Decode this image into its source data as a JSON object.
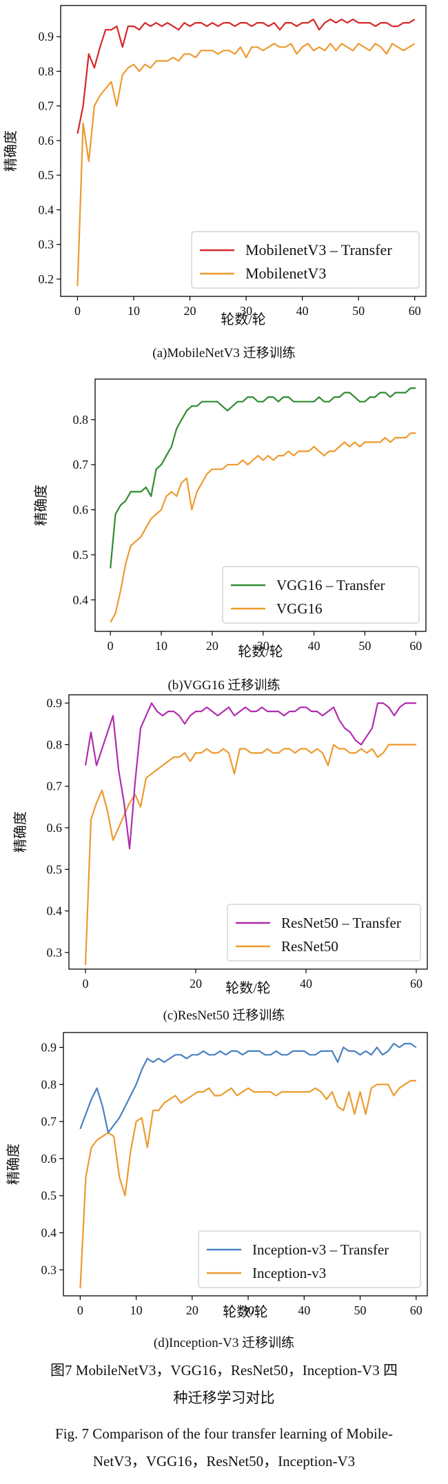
{
  "chart_data": [
    {
      "type": "line",
      "caption": "(a)MobileNetV3 迁移训练",
      "xlabel": "轮数/轮",
      "ylabel": "精确度",
      "xlim": [
        -3,
        62
      ],
      "ylim": [
        0.15,
        0.99
      ],
      "xticks": [
        0,
        10,
        20,
        30,
        40,
        50,
        60
      ],
      "xtick_labels": [
        "0",
        "10",
        "20",
        "30",
        "40",
        "50",
        "60"
      ],
      "yticks": [
        0.2,
        0.3,
        0.4,
        0.5,
        0.6,
        0.7,
        0.8,
        0.9
      ],
      "ytick_labels": [
        "0.2",
        "0.3",
        "0.4",
        "0.5",
        "0.6",
        "0.7",
        "0.8",
        "0.9"
      ],
      "legend_position": "lower-right",
      "grid": false,
      "x": [
        0,
        1,
        2,
        3,
        4,
        5,
        6,
        7,
        8,
        9,
        10,
        11,
        12,
        13,
        14,
        15,
        16,
        17,
        18,
        19,
        20,
        21,
        22,
        23,
        24,
        25,
        26,
        27,
        28,
        29,
        30,
        31,
        32,
        33,
        34,
        35,
        36,
        37,
        38,
        39,
        40,
        41,
        42,
        43,
        44,
        45,
        46,
        47,
        48,
        49,
        50,
        51,
        52,
        53,
        54,
        55,
        56,
        57,
        58,
        59,
        60
      ],
      "series": [
        {
          "name": "MobilenetV3 – Transfer",
          "color": "#d62728",
          "values": [
            0.62,
            0.7,
            0.85,
            0.81,
            0.87,
            0.92,
            0.92,
            0.93,
            0.87,
            0.93,
            0.93,
            0.92,
            0.94,
            0.93,
            0.94,
            0.93,
            0.94,
            0.93,
            0.92,
            0.94,
            0.93,
            0.94,
            0.94,
            0.93,
            0.94,
            0.93,
            0.94,
            0.94,
            0.93,
            0.94,
            0.94,
            0.93,
            0.94,
            0.94,
            0.93,
            0.94,
            0.92,
            0.94,
            0.94,
            0.93,
            0.94,
            0.94,
            0.95,
            0.92,
            0.94,
            0.95,
            0.94,
            0.95,
            0.94,
            0.95,
            0.94,
            0.94,
            0.94,
            0.93,
            0.94,
            0.94,
            0.93,
            0.93,
            0.94,
            0.94,
            0.95
          ]
        },
        {
          "name": "MobilenetV3",
          "color": "#ed9a2f",
          "values": [
            0.18,
            0.65,
            0.54,
            0.7,
            0.73,
            0.75,
            0.77,
            0.7,
            0.79,
            0.81,
            0.82,
            0.8,
            0.82,
            0.81,
            0.83,
            0.83,
            0.83,
            0.84,
            0.83,
            0.85,
            0.85,
            0.84,
            0.86,
            0.86,
            0.86,
            0.85,
            0.86,
            0.86,
            0.85,
            0.87,
            0.84,
            0.87,
            0.87,
            0.86,
            0.87,
            0.88,
            0.87,
            0.87,
            0.88,
            0.85,
            0.87,
            0.88,
            0.86,
            0.87,
            0.86,
            0.88,
            0.86,
            0.88,
            0.87,
            0.86,
            0.88,
            0.87,
            0.86,
            0.88,
            0.87,
            0.85,
            0.88,
            0.87,
            0.86,
            0.87,
            0.88
          ]
        }
      ]
    },
    {
      "type": "line",
      "caption": "(b)VGG16 迁移训练",
      "xlabel": "轮数/轮",
      "ylabel": "精确度",
      "xlim": [
        -3,
        62
      ],
      "ylim": [
        0.33,
        0.89
      ],
      "xticks": [
        0,
        10,
        20,
        30,
        40,
        50,
        60
      ],
      "xtick_labels": [
        "0",
        "10",
        "20",
        "30",
        "40",
        "50",
        "60"
      ],
      "yticks": [
        0.4,
        0.5,
        0.6,
        0.7,
        0.8
      ],
      "ytick_labels": [
        "0.4",
        "0.5",
        "0.6",
        "0.7",
        "0.8"
      ],
      "legend_position": "lower-right",
      "grid": false,
      "x": [
        0,
        1,
        2,
        3,
        4,
        5,
        6,
        7,
        8,
        9,
        10,
        11,
        12,
        13,
        14,
        15,
        16,
        17,
        18,
        19,
        20,
        21,
        22,
        23,
        24,
        25,
        26,
        27,
        28,
        29,
        30,
        31,
        32,
        33,
        34,
        35,
        36,
        37,
        38,
        39,
        40,
        41,
        42,
        43,
        44,
        45,
        46,
        47,
        48,
        49,
        50,
        51,
        52,
        53,
        54,
        55,
        56,
        57,
        58,
        59,
        60
      ],
      "series": [
        {
          "name": "VGG16 – Transfer",
          "color": "#2e8b2e",
          "values": [
            0.47,
            0.59,
            0.61,
            0.62,
            0.64,
            0.64,
            0.64,
            0.65,
            0.63,
            0.69,
            0.7,
            0.72,
            0.74,
            0.78,
            0.8,
            0.82,
            0.83,
            0.83,
            0.84,
            0.84,
            0.84,
            0.84,
            0.83,
            0.82,
            0.83,
            0.84,
            0.84,
            0.85,
            0.85,
            0.84,
            0.84,
            0.85,
            0.85,
            0.84,
            0.85,
            0.85,
            0.84,
            0.84,
            0.84,
            0.84,
            0.84,
            0.85,
            0.84,
            0.84,
            0.85,
            0.85,
            0.86,
            0.86,
            0.85,
            0.84,
            0.84,
            0.85,
            0.85,
            0.86,
            0.86,
            0.85,
            0.86,
            0.86,
            0.86,
            0.87,
            0.87
          ]
        },
        {
          "name": "VGG16",
          "color": "#ed9a2f",
          "values": [
            0.35,
            0.37,
            0.42,
            0.48,
            0.52,
            0.53,
            0.54,
            0.56,
            0.58,
            0.59,
            0.6,
            0.63,
            0.64,
            0.63,
            0.66,
            0.67,
            0.6,
            0.64,
            0.66,
            0.68,
            0.69,
            0.69,
            0.69,
            0.7,
            0.7,
            0.7,
            0.71,
            0.7,
            0.71,
            0.72,
            0.71,
            0.72,
            0.71,
            0.72,
            0.72,
            0.73,
            0.72,
            0.73,
            0.73,
            0.73,
            0.74,
            0.73,
            0.72,
            0.73,
            0.73,
            0.74,
            0.75,
            0.74,
            0.75,
            0.74,
            0.75,
            0.75,
            0.75,
            0.75,
            0.76,
            0.75,
            0.76,
            0.76,
            0.76,
            0.77,
            0.77
          ]
        }
      ]
    },
    {
      "type": "line",
      "caption": "(c)ResNet50 迁移训练",
      "xlabel": "轮数/轮",
      "ylabel": "精确度",
      "xlim": [
        -3,
        62
      ],
      "ylim": [
        0.26,
        0.92
      ],
      "xticks": [
        0,
        20,
        40,
        60
      ],
      "xtick_labels": [
        "0",
        "20",
        "40",
        "60"
      ],
      "yticks": [
        0.3,
        0.4,
        0.5,
        0.6,
        0.7,
        0.8,
        0.9
      ],
      "ytick_labels": [
        "0.3",
        "0.4",
        "0.5",
        "0.6",
        "0.7",
        "0.8",
        "0.9"
      ],
      "legend_position": "lower-right",
      "grid": false,
      "x": [
        0,
        1,
        2,
        3,
        4,
        5,
        6,
        7,
        8,
        9,
        10,
        11,
        12,
        13,
        14,
        15,
        16,
        17,
        18,
        19,
        20,
        21,
        22,
        23,
        24,
        25,
        26,
        27,
        28,
        29,
        30,
        31,
        32,
        33,
        34,
        35,
        36,
        37,
        38,
        39,
        40,
        41,
        42,
        43,
        44,
        45,
        46,
        47,
        48,
        49,
        50,
        51,
        52,
        53,
        54,
        55,
        56,
        57,
        58,
        59,
        60
      ],
      "series": [
        {
          "name": "ResNet50 – Transfer",
          "color": "#b02cb0",
          "values": [
            0.75,
            0.83,
            0.75,
            0.79,
            0.83,
            0.87,
            0.74,
            0.66,
            0.55,
            0.71,
            0.84,
            0.87,
            0.9,
            0.88,
            0.87,
            0.88,
            0.88,
            0.87,
            0.85,
            0.87,
            0.88,
            0.88,
            0.89,
            0.88,
            0.87,
            0.88,
            0.89,
            0.87,
            0.88,
            0.89,
            0.88,
            0.88,
            0.89,
            0.88,
            0.88,
            0.88,
            0.87,
            0.88,
            0.88,
            0.89,
            0.89,
            0.88,
            0.88,
            0.87,
            0.88,
            0.89,
            0.86,
            0.84,
            0.83,
            0.81,
            0.8,
            0.82,
            0.84,
            0.9,
            0.9,
            0.89,
            0.87,
            0.89,
            0.9,
            0.9,
            0.9
          ]
        },
        {
          "name": "ResNet50",
          "color": "#ed9a2f",
          "values": [
            0.27,
            0.62,
            0.66,
            0.69,
            0.64,
            0.57,
            0.6,
            0.63,
            0.66,
            0.68,
            0.65,
            0.72,
            0.73,
            0.74,
            0.75,
            0.76,
            0.77,
            0.77,
            0.78,
            0.76,
            0.78,
            0.78,
            0.79,
            0.78,
            0.78,
            0.79,
            0.78,
            0.73,
            0.79,
            0.79,
            0.78,
            0.78,
            0.78,
            0.79,
            0.78,
            0.78,
            0.79,
            0.79,
            0.78,
            0.79,
            0.79,
            0.78,
            0.79,
            0.78,
            0.75,
            0.8,
            0.79,
            0.79,
            0.78,
            0.78,
            0.79,
            0.78,
            0.79,
            0.77,
            0.78,
            0.8,
            0.8,
            0.8,
            0.8,
            0.8,
            0.8
          ]
        }
      ]
    },
    {
      "type": "line",
      "caption": "(d)Inception-V3 迁移训练",
      "xlabel": "轮数/轮",
      "ylabel": "精确度",
      "xlim": [
        -3,
        62
      ],
      "ylim": [
        0.23,
        0.94
      ],
      "xticks": [
        0,
        10,
        20,
        30,
        40,
        50,
        60
      ],
      "xtick_labels": [
        "0",
        "10",
        "20",
        "30",
        "40",
        "50",
        "60"
      ],
      "yticks": [
        0.3,
        0.4,
        0.5,
        0.6,
        0.7,
        0.8,
        0.9
      ],
      "ytick_labels": [
        "0.3",
        "0.4",
        "0.5",
        "0.6",
        "0.7",
        "0.8",
        "0.9"
      ],
      "legend_position": "lower-right",
      "grid": false,
      "x": [
        0,
        1,
        2,
        3,
        4,
        5,
        6,
        7,
        8,
        9,
        10,
        11,
        12,
        13,
        14,
        15,
        16,
        17,
        18,
        19,
        20,
        21,
        22,
        23,
        24,
        25,
        26,
        27,
        28,
        29,
        30,
        31,
        32,
        33,
        34,
        35,
        36,
        37,
        38,
        39,
        40,
        41,
        42,
        43,
        44,
        45,
        46,
        47,
        48,
        49,
        50,
        51,
        52,
        53,
        54,
        55,
        56,
        57,
        58,
        59,
        60
      ],
      "series": [
        {
          "name": "Inception-v3 – Transfer",
          "color": "#4a80c0",
          "values": [
            0.68,
            0.72,
            0.76,
            0.79,
            0.74,
            0.67,
            0.69,
            0.71,
            0.74,
            0.77,
            0.8,
            0.84,
            0.87,
            0.86,
            0.87,
            0.86,
            0.87,
            0.88,
            0.88,
            0.87,
            0.88,
            0.88,
            0.89,
            0.88,
            0.88,
            0.89,
            0.88,
            0.89,
            0.89,
            0.88,
            0.89,
            0.89,
            0.89,
            0.88,
            0.88,
            0.89,
            0.88,
            0.88,
            0.89,
            0.89,
            0.89,
            0.88,
            0.88,
            0.89,
            0.89,
            0.89,
            0.86,
            0.9,
            0.89,
            0.89,
            0.88,
            0.89,
            0.88,
            0.9,
            0.88,
            0.89,
            0.91,
            0.9,
            0.91,
            0.91,
            0.9
          ]
        },
        {
          "name": "Inception-v3",
          "color": "#ed9a2f",
          "values": [
            0.25,
            0.55,
            0.63,
            0.65,
            0.66,
            0.67,
            0.66,
            0.55,
            0.5,
            0.62,
            0.7,
            0.71,
            0.63,
            0.73,
            0.73,
            0.75,
            0.76,
            0.77,
            0.75,
            0.76,
            0.77,
            0.78,
            0.78,
            0.79,
            0.77,
            0.77,
            0.78,
            0.79,
            0.77,
            0.78,
            0.79,
            0.78,
            0.78,
            0.78,
            0.78,
            0.77,
            0.78,
            0.78,
            0.78,
            0.78,
            0.78,
            0.78,
            0.79,
            0.78,
            0.76,
            0.78,
            0.74,
            0.73,
            0.78,
            0.72,
            0.78,
            0.72,
            0.79,
            0.8,
            0.8,
            0.8,
            0.77,
            0.79,
            0.8,
            0.81,
            0.81
          ]
        }
      ]
    }
  ],
  "figure_caption": {
    "zh_line1": "图7  MobileNetV3，VGG16，ResNet50，Inception-V3 四",
    "zh_line2": "种迁移学习对比",
    "en_line1": "Fig. 7  Comparison of the four transfer learning of Mobile-",
    "en_line2": "NetV3，VGG16，ResNet50，Inception-V3"
  }
}
